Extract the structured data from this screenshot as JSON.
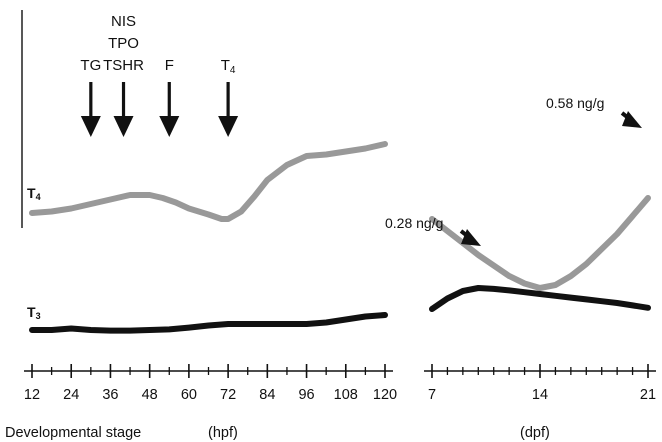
{
  "chart_data": [
    {
      "type": "line",
      "panel": "left",
      "xlabel": "Developmental stage",
      "xunit": "(hpf)",
      "x_ticks": [
        12,
        24,
        36,
        48,
        60,
        72,
        84,
        96,
        108,
        120
      ],
      "xlim": [
        12,
        120
      ],
      "series": [
        {
          "name": "T4",
          "color": "#999999",
          "x": [
            12,
            18,
            24,
            30,
            36,
            42,
            48,
            52,
            56,
            60,
            66,
            70,
            72,
            76,
            80,
            84,
            90,
            96,
            102,
            108,
            114,
            120
          ],
          "y": [
            0.53,
            0.535,
            0.545,
            0.56,
            0.575,
            0.59,
            0.59,
            0.58,
            0.565,
            0.545,
            0.525,
            0.51,
            0.51,
            0.535,
            0.585,
            0.64,
            0.69,
            0.72,
            0.725,
            0.735,
            0.745,
            0.76
          ]
        },
        {
          "name": "T3",
          "color": "#111111",
          "x": [
            12,
            18,
            24,
            30,
            36,
            42,
            48,
            54,
            60,
            66,
            72,
            78,
            84,
            90,
            96,
            102,
            108,
            114,
            120
          ],
          "y": [
            0.14,
            0.14,
            0.145,
            0.14,
            0.138,
            0.138,
            0.14,
            0.142,
            0.148,
            0.155,
            0.16,
            0.16,
            0.16,
            0.16,
            0.16,
            0.165,
            0.175,
            0.185,
            0.19
          ]
        }
      ],
      "arrows": [
        {
          "x": 30,
          "lines": [
            "TG"
          ]
        },
        {
          "x": 40,
          "lines": [
            "NIS",
            "TPO",
            "TSHR"
          ]
        },
        {
          "x": 54,
          "lines": [
            "F"
          ]
        },
        {
          "x": 72,
          "lines": [
            "T4"
          ]
        }
      ]
    },
    {
      "type": "line",
      "panel": "right",
      "xunit": "(dpf)",
      "x_ticks": [
        7,
        14,
        21
      ],
      "xlim": [
        7,
        21
      ],
      "series": [
        {
          "name": "T4",
          "color": "#999999",
          "x": [
            7,
            8,
            9,
            10,
            11,
            12,
            13,
            14,
            15,
            16,
            17,
            18,
            19,
            20,
            21
          ],
          "y": [
            0.51,
            0.47,
            0.43,
            0.39,
            0.355,
            0.32,
            0.295,
            0.28,
            0.29,
            0.32,
            0.36,
            0.41,
            0.46,
            0.52,
            0.58
          ]
        },
        {
          "name": "T3",
          "color": "#111111",
          "x": [
            7,
            8,
            9,
            10,
            11,
            12,
            13,
            14,
            15,
            16,
            17,
            18,
            19,
            20,
            21
          ],
          "y": [
            0.21,
            0.245,
            0.27,
            0.28,
            0.277,
            0.272,
            0.266,
            0.26,
            0.254,
            0.248,
            0.242,
            0.236,
            0.23,
            0.222,
            0.214
          ]
        }
      ],
      "annotations": [
        {
          "text": "0.58 ng/g",
          "series": "T4",
          "x": 21,
          "y": 0.58
        },
        {
          "text": "0.28 ng/g",
          "series": "T3",
          "x": 10,
          "y": 0.28
        }
      ]
    }
  ],
  "labels": {
    "T4_main": "T",
    "T4_sub": "4",
    "T3_main": "T",
    "T3_sub": "3",
    "arrow_T4_main": "T",
    "arrow_T4_sub": "4",
    "xlabel": "Developmental stage",
    "xunit_left": "(hpf)",
    "xunit_right": "(dpf)"
  }
}
